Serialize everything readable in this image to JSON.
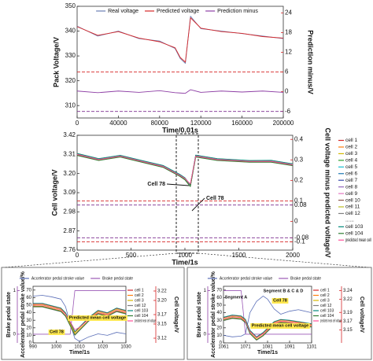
{
  "chart_data": [
    {
      "type": "line",
      "xlabel": "Time/0.01s",
      "ylabel": "Pack Voltage/V",
      "y2label": "Prediction minus/V",
      "y_color": "#2a3a9a",
      "y2_color": "#d62728",
      "legend": "top",
      "x": [
        0,
        20000,
        40000,
        60000,
        80000,
        95000,
        100000,
        105000,
        110000,
        120000,
        140000,
        160000,
        180000,
        200000
      ],
      "xlim": [
        0,
        200000
      ],
      "xticks": [
        0,
        40000,
        80000,
        120000,
        160000,
        200000
      ],
      "ylim": [
        305,
        350
      ],
      "yticks": [
        310,
        320,
        330,
        340,
        350
      ],
      "y2lim": [
        -8,
        26
      ],
      "y2ticks": [
        -6,
        0,
        6,
        12,
        18,
        24
      ],
      "ref_lines_y2": [
        6,
        -6
      ],
      "ref_line_colors": [
        "#d62728",
        "#7b2d8e"
      ],
      "series": [
        {
          "name": "Real voltage",
          "color": "#6b7fb5",
          "values": [
            342,
            338,
            340,
            337,
            336,
            333,
            329,
            327,
            346,
            341,
            340,
            339,
            338,
            337
          ]
        },
        {
          "name": "Predicted voltage",
          "color": "#d62728",
          "values": [
            341.8,
            338.3,
            339.8,
            337.2,
            335.7,
            333.3,
            329.4,
            327.5,
            345.4,
            341.2,
            339.8,
            339.1,
            337.8,
            337.2
          ]
        },
        {
          "name": "Prediction minus",
          "color": "#8e3fa5",
          "axis": "y2",
          "values": [
            0.2,
            -0.3,
            0.2,
            -0.2,
            0.3,
            -0.3,
            -0.4,
            -0.5,
            0.6,
            -0.2,
            0.2,
            -0.1,
            0.2,
            -0.2
          ]
        }
      ]
    },
    {
      "type": "line",
      "xlabel": "Time/1s",
      "ylabel": "Cell voltage/V",
      "y2label": "Cell voltage minus predicted voltage/V",
      "y_color": "#2a3a9a",
      "y2_color": "#d62728",
      "legend": "right",
      "legend_gap": "......",
      "x": [
        0,
        200,
        400,
        600,
        800,
        950,
        1000,
        1050,
        1100,
        1300,
        1600,
        1800,
        2000
      ],
      "xlim": [
        0,
        2000
      ],
      "xticks": [
        0,
        500,
        1000,
        1500,
        2000
      ],
      "ylim": [
        2.76,
        3.42
      ],
      "yticks": [
        2.76,
        2.87,
        2.98,
        3.09,
        {
          "value": 3.2,
          "label": "3.20"
        },
        3.31,
        3.42
      ],
      "y2lim": [
        -0.14,
        0.42
      ],
      "y2ticks": [
        -0.1,
        -0.08,
        0,
        0.08,
        0.1,
        0.2,
        0.3,
        0.4
      ],
      "ref_lines_y2": [
        0.1,
        0.08,
        -0.08,
        -0.1
      ],
      "ref_line_colors": [
        "#d62728",
        "#7b2d8e",
        "#7b2d8e",
        "#d62728"
      ],
      "annotations": [
        "Cell 78",
        "Cell 78"
      ],
      "series": [
        {
          "name": "cell 1",
          "color": "#d62728",
          "values": [
            3.312,
            3.282,
            3.301,
            3.271,
            3.242,
            3.192,
            3.171,
            3.132,
            3.302,
            3.281,
            3.271,
            3.272,
            3.252
          ]
        },
        {
          "name": "cell 2",
          "color": "#ff7f0e",
          "values": [
            3.308,
            3.279,
            3.298,
            3.268,
            3.238,
            3.188,
            3.168,
            3.128,
            3.298,
            3.278,
            3.268,
            3.269,
            3.249
          ]
        },
        {
          "name": "cell 3",
          "color": "#d4b800",
          "values": [
            3.315,
            3.285,
            3.304,
            3.274,
            3.245,
            3.195,
            3.174,
            3.135,
            3.305,
            3.285,
            3.274,
            3.275,
            3.255
          ]
        },
        {
          "name": "cell 4",
          "color": "#2ca02c",
          "values": [
            3.305,
            3.276,
            3.296,
            3.266,
            3.236,
            3.186,
            3.165,
            3.126,
            3.296,
            3.276,
            3.266,
            3.266,
            3.246
          ]
        },
        {
          "name": "cell 5",
          "color": "#17becf",
          "values": [
            3.311,
            3.281,
            3.3,
            3.27,
            3.241,
            3.19,
            3.17,
            3.131,
            3.301,
            3.28,
            3.27,
            3.271,
            3.251
          ]
        },
        {
          "name": "cell 6",
          "color": "#1f77b4",
          "values": [
            3.309,
            3.28,
            3.299,
            3.269,
            3.239,
            3.189,
            3.169,
            3.129,
            3.299,
            3.279,
            3.269,
            3.27,
            3.25
          ]
        },
        {
          "name": "cell 7",
          "color": "#3949ab",
          "values": [
            3.313,
            3.283,
            3.302,
            3.272,
            3.243,
            3.193,
            3.172,
            3.133,
            3.303,
            3.283,
            3.272,
            3.273,
            3.253
          ]
        },
        {
          "name": "cell 8",
          "color": "#9467bd",
          "values": [
            3.307,
            3.278,
            3.297,
            3.267,
            3.237,
            3.187,
            3.167,
            3.127,
            3.297,
            3.277,
            3.267,
            3.268,
            3.248
          ]
        },
        {
          "name": "cell 9",
          "color": "#e377c2",
          "values": [
            3.314,
            3.284,
            3.303,
            3.273,
            3.244,
            3.194,
            3.173,
            3.134,
            3.304,
            3.284,
            3.273,
            3.274,
            3.254
          ]
        },
        {
          "name": "cell 10",
          "color": "#8c564b",
          "values": [
            3.306,
            3.277,
            3.297,
            3.267,
            3.237,
            3.186,
            3.166,
            3.127,
            3.297,
            3.277,
            3.267,
            3.267,
            3.247
          ]
        },
        {
          "name": "cell 11",
          "color": "#bcbd22",
          "values": [
            3.31,
            3.28,
            3.3,
            3.27,
            3.24,
            3.19,
            3.17,
            3.13,
            3.3,
            3.28,
            3.27,
            3.27,
            3.25
          ]
        },
        {
          "name": "cell 12",
          "color": "#7f7f7f",
          "values": [
            3.312,
            3.281,
            3.301,
            3.271,
            3.241,
            3.191,
            3.171,
            3.131,
            3.301,
            3.281,
            3.271,
            3.271,
            3.251
          ]
        },
        {
          "name": "cell 103",
          "color": "#00897b",
          "values": [
            3.316,
            3.286,
            3.305,
            3.275,
            3.246,
            3.196,
            3.176,
            3.136,
            3.306,
            3.286,
            3.275,
            3.276,
            3.256
          ]
        },
        {
          "name": "cell 104",
          "color": "#2e7d32",
          "values": [
            3.304,
            3.275,
            3.295,
            3.265,
            3.235,
            3.185,
            3.164,
            3.125,
            3.295,
            3.275,
            3.265,
            3.265,
            3.245
          ]
        },
        {
          "name": "predicted mean cell",
          "color": "#ff4f9a",
          "values": [
            3.31,
            3.28,
            3.3,
            3.27,
            3.24,
            3.19,
            3.172,
            3.14,
            3.3,
            3.28,
            3.27,
            3.27,
            3.25
          ]
        }
      ]
    },
    {
      "type": "line",
      "xlabel": "Time/1s",
      "ylabel": "Accelerator pedal stroke value/%",
      "y2label": "Cell voltage/V",
      "y3label": "Brake pedal state",
      "y_color": "#2a3a9a",
      "y2_color": "#d62728",
      "y3_color": "#8e3fa5",
      "legend": "split",
      "x": [
        990,
        994,
        998,
        1002,
        1004,
        1006,
        1008,
        1010,
        1014,
        1018,
        1022,
        1026,
        1030
      ],
      "xlim": [
        990,
        1030
      ],
      "xticks": [
        990,
        1000,
        1010,
        1020,
        1030
      ],
      "ylim": [
        0,
        75
      ],
      "yticks": [
        0,
        10,
        20,
        30,
        40,
        50,
        60,
        70
      ],
      "y2lim": [
        3.11,
        3.23
      ],
      "y2ticks": [
        3.12,
        3.15,
        3.17,
        {
          "value": 3.2,
          "label": "3.20"
        },
        3.22
      ],
      "y3lim": [
        -0.2,
        1.1
      ],
      "y3ticks": [
        0,
        1
      ],
      "annotations": [
        "Cell 78",
        "Predicted mean cell voltage"
      ],
      "series": [
        {
          "name": "Accelerator pedal stroke value",
          "color": "#5b6fb8",
          "values": [
            62,
            63,
            61,
            58,
            48,
            25,
            6,
            2,
            8,
            12,
            10,
            14,
            12
          ]
        },
        {
          "name": "Brake pedal state",
          "color": "#9b59b6",
          "axis": "y3",
          "values": [
            0,
            0,
            0,
            0,
            0,
            0,
            1,
            1,
            1,
            1,
            1,
            1,
            1
          ]
        },
        {
          "name": "cell 1",
          "color": "#d62728",
          "axis": "y2",
          "values": [
            3.193,
            3.193,
            3.188,
            3.183,
            3.173,
            3.153,
            3.133,
            3.143,
            3.163,
            3.178,
            3.173,
            3.183,
            3.178
          ]
        },
        {
          "name": "cell 2",
          "color": "#ff7f0e",
          "axis": "y2",
          "values": [
            3.188,
            3.188,
            3.183,
            3.178,
            3.168,
            3.148,
            3.128,
            3.138,
            3.158,
            3.173,
            3.168,
            3.178,
            3.173
          ]
        },
        {
          "name": "cell 3",
          "color": "#d4b800",
          "axis": "y2",
          "values": [
            3.191,
            3.191,
            3.186,
            3.181,
            3.171,
            3.151,
            3.131,
            3.141,
            3.161,
            3.176,
            3.171,
            3.181,
            3.176
          ]
        },
        {
          "name": "cell 12",
          "color": "#7f7f7f",
          "axis": "y2",
          "values": [
            3.186,
            3.186,
            3.181,
            3.176,
            3.166,
            3.146,
            3.126,
            3.136,
            3.156,
            3.171,
            3.166,
            3.176,
            3.171
          ]
        },
        {
          "name": "cell 103",
          "color": "#00897b",
          "axis": "y2",
          "values": [
            3.194,
            3.194,
            3.189,
            3.184,
            3.174,
            3.154,
            3.134,
            3.144,
            3.164,
            3.179,
            3.174,
            3.184,
            3.179
          ]
        },
        {
          "name": "cell 104",
          "color": "#2e7d32",
          "axis": "y2",
          "values": [
            3.187,
            3.187,
            3.182,
            3.177,
            3.167,
            3.147,
            3.127,
            3.137,
            3.157,
            3.172,
            3.167,
            3.177,
            3.172
          ]
        },
        {
          "name": "predicted mean cell voltage",
          "color": "#ff4f9a",
          "axis": "y2",
          "values": [
            3.19,
            3.19,
            3.185,
            3.18,
            3.171,
            3.155,
            3.138,
            3.143,
            3.16,
            3.174,
            3.17,
            3.179,
            3.175
          ]
        }
      ]
    },
    {
      "type": "line",
      "xlabel": "Time/1s",
      "ylabel": "Accelerator pedal stroke value/%",
      "y2label": "Cell voltage/V",
      "y3label": "Brake pedal state",
      "y_color": "#2a3a9a",
      "y2_color": "#d62728",
      "y3_color": "#8e3fa5",
      "legend": "split",
      "x": [
        1061,
        1065,
        1069,
        1071,
        1073,
        1076,
        1079,
        1081,
        1084,
        1087,
        1091,
        1095,
        1101
      ],
      "xlim": [
        1061,
        1101
      ],
      "xticks": [
        1061,
        1071,
        1081,
        1091,
        1101
      ],
      "ylim": [
        0,
        75
      ],
      "yticks": [
        0,
        10,
        20,
        30,
        40,
        50,
        60,
        70
      ],
      "y2lim": [
        3.12,
        3.25
      ],
      "y2ticks": [
        3.15,
        3.17,
        3.19,
        3.22,
        3.24
      ],
      "y3lim": [
        -0.2,
        1.1
      ],
      "y3ticks": [
        0,
        1
      ],
      "annotations": [
        "Segment A",
        "Segment B & C & D",
        "Cell 78",
        "Predicted mean cell voltage"
      ],
      "series": [
        {
          "name": "Accelerator pedal stroke value",
          "color": "#5b6fb8",
          "values": [
            10,
            8,
            9,
            12,
            40,
            55,
            62,
            58,
            45,
            38,
            42,
            44,
            40
          ]
        },
        {
          "name": "Brake pedal state",
          "color": "#9b59b6",
          "axis": "y3",
          "values": [
            1,
            1,
            1,
            0,
            0,
            0,
            0,
            0,
            0,
            0,
            0,
            0,
            0
          ]
        },
        {
          "name": "cell 1",
          "color": "#d62728",
          "axis": "y2",
          "values": [
            3.178,
            3.183,
            3.181,
            3.173,
            3.148,
            3.133,
            3.143,
            3.153,
            3.168,
            3.173,
            3.171,
            3.168,
            3.163
          ]
        },
        {
          "name": "cell 2",
          "color": "#ff7f0e",
          "axis": "y2",
          "values": [
            3.173,
            3.178,
            3.176,
            3.168,
            3.143,
            3.128,
            3.138,
            3.148,
            3.163,
            3.168,
            3.166,
            3.163,
            3.158
          ]
        },
        {
          "name": "cell 3",
          "color": "#d4b800",
          "axis": "y2",
          "values": [
            3.176,
            3.181,
            3.179,
            3.171,
            3.146,
            3.131,
            3.141,
            3.151,
            3.166,
            3.171,
            3.169,
            3.166,
            3.161
          ]
        },
        {
          "name": "cell 12",
          "color": "#7f7f7f",
          "axis": "y2",
          "values": [
            3.171,
            3.176,
            3.174,
            3.166,
            3.141,
            3.126,
            3.136,
            3.146,
            3.161,
            3.166,
            3.164,
            3.161,
            3.156
          ]
        },
        {
          "name": "cell 103",
          "color": "#00897b",
          "axis": "y2",
          "values": [
            3.179,
            3.184,
            3.182,
            3.174,
            3.149,
            3.134,
            3.144,
            3.154,
            3.169,
            3.174,
            3.172,
            3.169,
            3.164
          ]
        },
        {
          "name": "cell 104",
          "color": "#2e7d32",
          "axis": "y2",
          "values": [
            3.172,
            3.177,
            3.175,
            3.167,
            3.142,
            3.127,
            3.137,
            3.147,
            3.162,
            3.167,
            3.165,
            3.162,
            3.157
          ]
        },
        {
          "name": "predicted mean cell voltage",
          "color": "#ff4f9a",
          "axis": "y2",
          "values": [
            3.175,
            3.18,
            3.178,
            3.17,
            3.146,
            3.132,
            3.141,
            3.15,
            3.165,
            3.17,
            3.168,
            3.165,
            3.16
          ]
        }
      ]
    }
  ]
}
